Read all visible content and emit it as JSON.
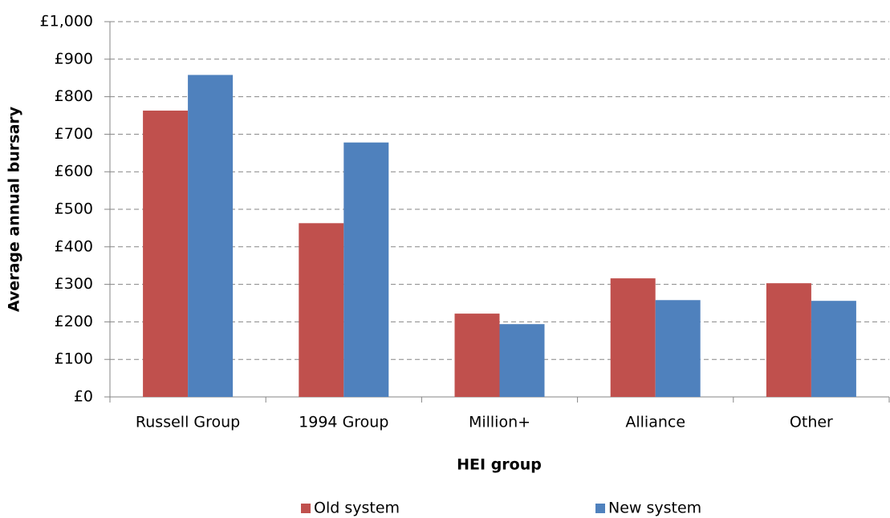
{
  "chart_data": {
    "type": "bar",
    "x_label": "HEI group",
    "y_label": "Average annual bursary",
    "categories": [
      "Russell Group",
      "1994 Group",
      "Million+",
      "Alliance",
      "Other"
    ],
    "series": [
      {
        "name": "Old system",
        "color": "#c0504d",
        "values": [
          763,
          463,
          222,
          316,
          303
        ]
      },
      {
        "name": "New system",
        "color": "#4f81bd",
        "values": [
          858,
          678,
          194,
          258,
          256
        ]
      }
    ],
    "ylim": [
      0,
      1000
    ],
    "yticks": [
      {
        "value": 0,
        "label": "£0"
      },
      {
        "value": 100,
        "label": "£100"
      },
      {
        "value": 200,
        "label": "£200"
      },
      {
        "value": 300,
        "label": "£300"
      },
      {
        "value": 400,
        "label": "£400"
      },
      {
        "value": 500,
        "label": "£500"
      },
      {
        "value": 600,
        "label": "£600"
      },
      {
        "value": 700,
        "label": "£700"
      },
      {
        "value": 800,
        "label": "£800"
      },
      {
        "value": 900,
        "label": "£900"
      },
      {
        "value": 1000,
        "label": "£1,000"
      }
    ],
    "grid": true,
    "legend": "bottom"
  }
}
